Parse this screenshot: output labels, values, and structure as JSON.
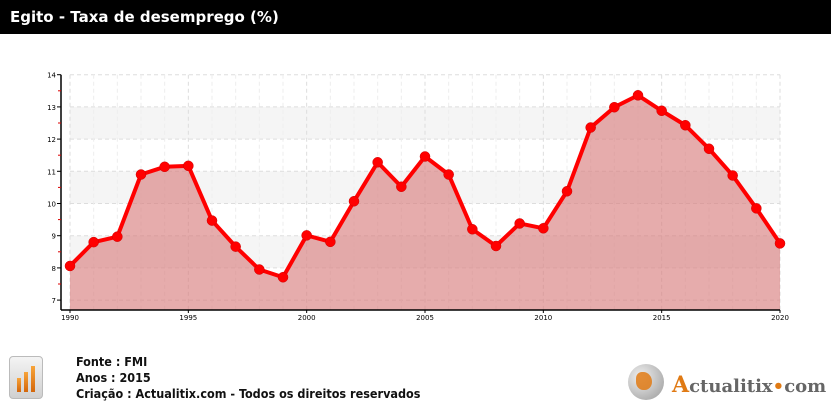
{
  "header": {
    "title": "Egito - Taxa de desemprego (%)"
  },
  "colors": {
    "line": "#ff0000",
    "fill": "#d98080",
    "band": "#f5f5f5",
    "accent": "#e07a14"
  },
  "chart_data": {
    "type": "area",
    "title": "Egito - Taxa de desemprego (%)",
    "xlabel": "",
    "ylabel": "",
    "x": [
      1990,
      1991,
      1992,
      1993,
      1994,
      1995,
      1996,
      1997,
      1998,
      1999,
      2000,
      2001,
      2002,
      2003,
      2004,
      2005,
      2006,
      2007,
      2008,
      2009,
      2010,
      2011,
      2012,
      2013,
      2014,
      2015,
      2016,
      2017,
      2018,
      2019,
      2020
    ],
    "series": [
      {
        "name": "Taxa de desemprego (%)",
        "values": [
          8.06,
          8.8,
          8.97,
          10.9,
          11.14,
          11.17,
          9.47,
          8.66,
          7.95,
          7.71,
          9.01,
          8.81,
          10.07,
          11.28,
          10.52,
          11.46,
          10.9,
          9.2,
          8.68,
          9.38,
          9.23,
          10.38,
          12.36,
          12.99,
          13.36,
          12.88,
          12.43,
          11.7,
          10.87,
          9.85,
          8.76
        ]
      }
    ],
    "xlim": [
      1990,
      2020
    ],
    "ylim": [
      6.7,
      14
    ],
    "x_ticks": [
      "1990",
      "1995",
      "2000",
      "2005",
      "2010",
      "2015",
      "2020"
    ],
    "y_ticks": [
      "7",
      "8",
      "9",
      "10",
      "11",
      "12",
      "13",
      "14"
    ],
    "grid": true,
    "legend": "none"
  },
  "footer": {
    "source": "Fonte : FMI",
    "years": "Anos : 2015",
    "credit": "Criação : Actualitix.com - Todos os direitos reservados",
    "logo_text": "Actualitix.com"
  }
}
